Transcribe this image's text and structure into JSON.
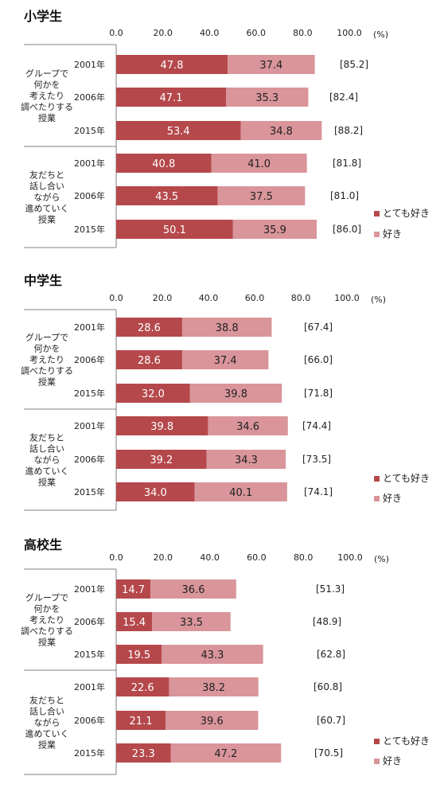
{
  "colors": {
    "very_like": "#b5484b",
    "like": "#d9959a",
    "axis": "#7f7f7f"
  },
  "unit": "(%)",
  "legend": [
    "とても好き",
    "好き"
  ],
  "chart_data": [
    {
      "type": "bar",
      "stacked": true,
      "orientation": "horizontal",
      "title": "小学生",
      "xlim": [
        0,
        100
      ],
      "ticks": [
        "0.0",
        "20.0",
        "40.0",
        "60.0",
        "80.0",
        "100.0"
      ],
      "groups": [
        {
          "label": [
            "グループで",
            "何かを",
            "考えたり",
            "調べたりする",
            "授業"
          ],
          "rows": [
            {
              "year": "2001年",
              "very_like": 47.8,
              "like": 37.4,
              "total": "[85.2]"
            },
            {
              "year": "2006年",
              "very_like": 47.1,
              "like": 35.3,
              "total": "[82.4]"
            },
            {
              "year": "2015年",
              "very_like": 53.4,
              "like": 34.8,
              "total": "[88.2]"
            }
          ]
        },
        {
          "label": [
            "友だちと",
            "話し合い",
            "ながら",
            "進めていく",
            "授業"
          ],
          "rows": [
            {
              "year": "2001年",
              "very_like": 40.8,
              "like": 41.0,
              "total": "[81.8]"
            },
            {
              "year": "2006年",
              "very_like": 43.5,
              "like": 37.5,
              "total": "[81.0]"
            },
            {
              "year": "2015年",
              "very_like": 50.1,
              "like": 35.9,
              "total": "[86.0]"
            }
          ]
        }
      ]
    },
    {
      "type": "bar",
      "stacked": true,
      "orientation": "horizontal",
      "title": "中学生",
      "xlim": [
        0,
        100
      ],
      "ticks": [
        "0.0",
        "20.0",
        "40.0",
        "60.0",
        "80.0",
        "100.0"
      ],
      "groups": [
        {
          "label": [
            "グループで",
            "何かを",
            "考えたり",
            "調べたりする",
            "授業"
          ],
          "rows": [
            {
              "year": "2001年",
              "very_like": 28.6,
              "like": 38.8,
              "total": "[67.4]"
            },
            {
              "year": "2006年",
              "very_like": 28.6,
              "like": 37.4,
              "total": "[66.0]"
            },
            {
              "year": "2015年",
              "very_like": 32.0,
              "like": 39.8,
              "total": "[71.8]"
            }
          ]
        },
        {
          "label": [
            "友だちと",
            "話し合い",
            "ながら",
            "進めていく",
            "授業"
          ],
          "rows": [
            {
              "year": "2001年",
              "very_like": 39.8,
              "like": 34.6,
              "total": "[74.4]"
            },
            {
              "year": "2006年",
              "very_like": 39.2,
              "like": 34.3,
              "total": "[73.5]"
            },
            {
              "year": "2015年",
              "very_like": 34.0,
              "like": 40.1,
              "total": "[74.1]"
            }
          ]
        }
      ]
    },
    {
      "type": "bar",
      "stacked": true,
      "orientation": "horizontal",
      "title": "高校生",
      "xlim": [
        0,
        100
      ],
      "ticks": [
        "0.0",
        "20.0",
        "40.0",
        "60.0",
        "80.0",
        "100.0"
      ],
      "groups": [
        {
          "label": [
            "グループで",
            "何かを",
            "考えたり",
            "調べたりする",
            "授業"
          ],
          "rows": [
            {
              "year": "2001年",
              "very_like": 14.7,
              "like": 36.6,
              "total": "[51.3]"
            },
            {
              "year": "2006年",
              "very_like": 15.4,
              "like": 33.5,
              "total": "[48.9]"
            },
            {
              "year": "2015年",
              "very_like": 19.5,
              "like": 43.3,
              "total": "[62.8]"
            }
          ]
        },
        {
          "label": [
            "友だちと",
            "話し合い",
            "ながら",
            "進めていく",
            "授業"
          ],
          "rows": [
            {
              "year": "2001年",
              "very_like": 22.6,
              "like": 38.2,
              "total": "[60.8]"
            },
            {
              "year": "2006年",
              "very_like": 21.1,
              "like": 39.6,
              "total": "[60.7]"
            },
            {
              "year": "2015年",
              "very_like": 23.3,
              "like": 47.2,
              "total": "[70.5]"
            }
          ]
        }
      ]
    }
  ]
}
